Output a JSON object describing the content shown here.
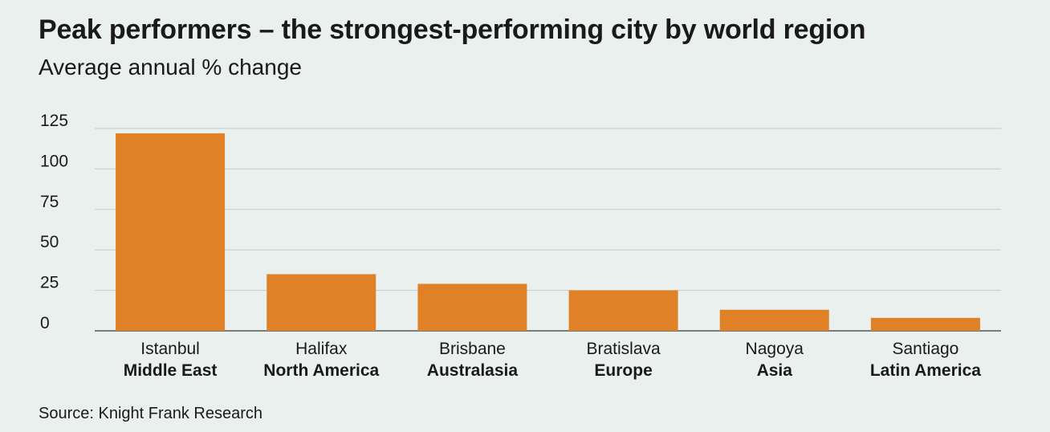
{
  "title": "Peak performers – the strongest-performing city by world region",
  "subtitle": "Average annual % change",
  "source": "Source: Knight Frank Research",
  "colors": {
    "background": "#e9f0ed",
    "bar": "#e08128",
    "gridline": "#c4ccc8",
    "baseline": "#555555",
    "text": "#1a1a1a"
  },
  "chart_data": {
    "type": "bar",
    "title": "Peak performers – the strongest-performing city by world region",
    "subtitle": "Average annual % change",
    "categories": [
      "Istanbul",
      "Halifax",
      "Brisbane",
      "Bratislava",
      "Nagoya",
      "Santiago"
    ],
    "regions": [
      "Middle East",
      "North America",
      "Australasia",
      "Europe",
      "Asia",
      "Latin America"
    ],
    "values": [
      122,
      35,
      29,
      25,
      13,
      8
    ],
    "ylim": [
      0,
      125
    ],
    "yticks": [
      0,
      25,
      50,
      75,
      100,
      125
    ],
    "xlabel": "",
    "ylabel": "",
    "grid": true,
    "legend": "none"
  }
}
